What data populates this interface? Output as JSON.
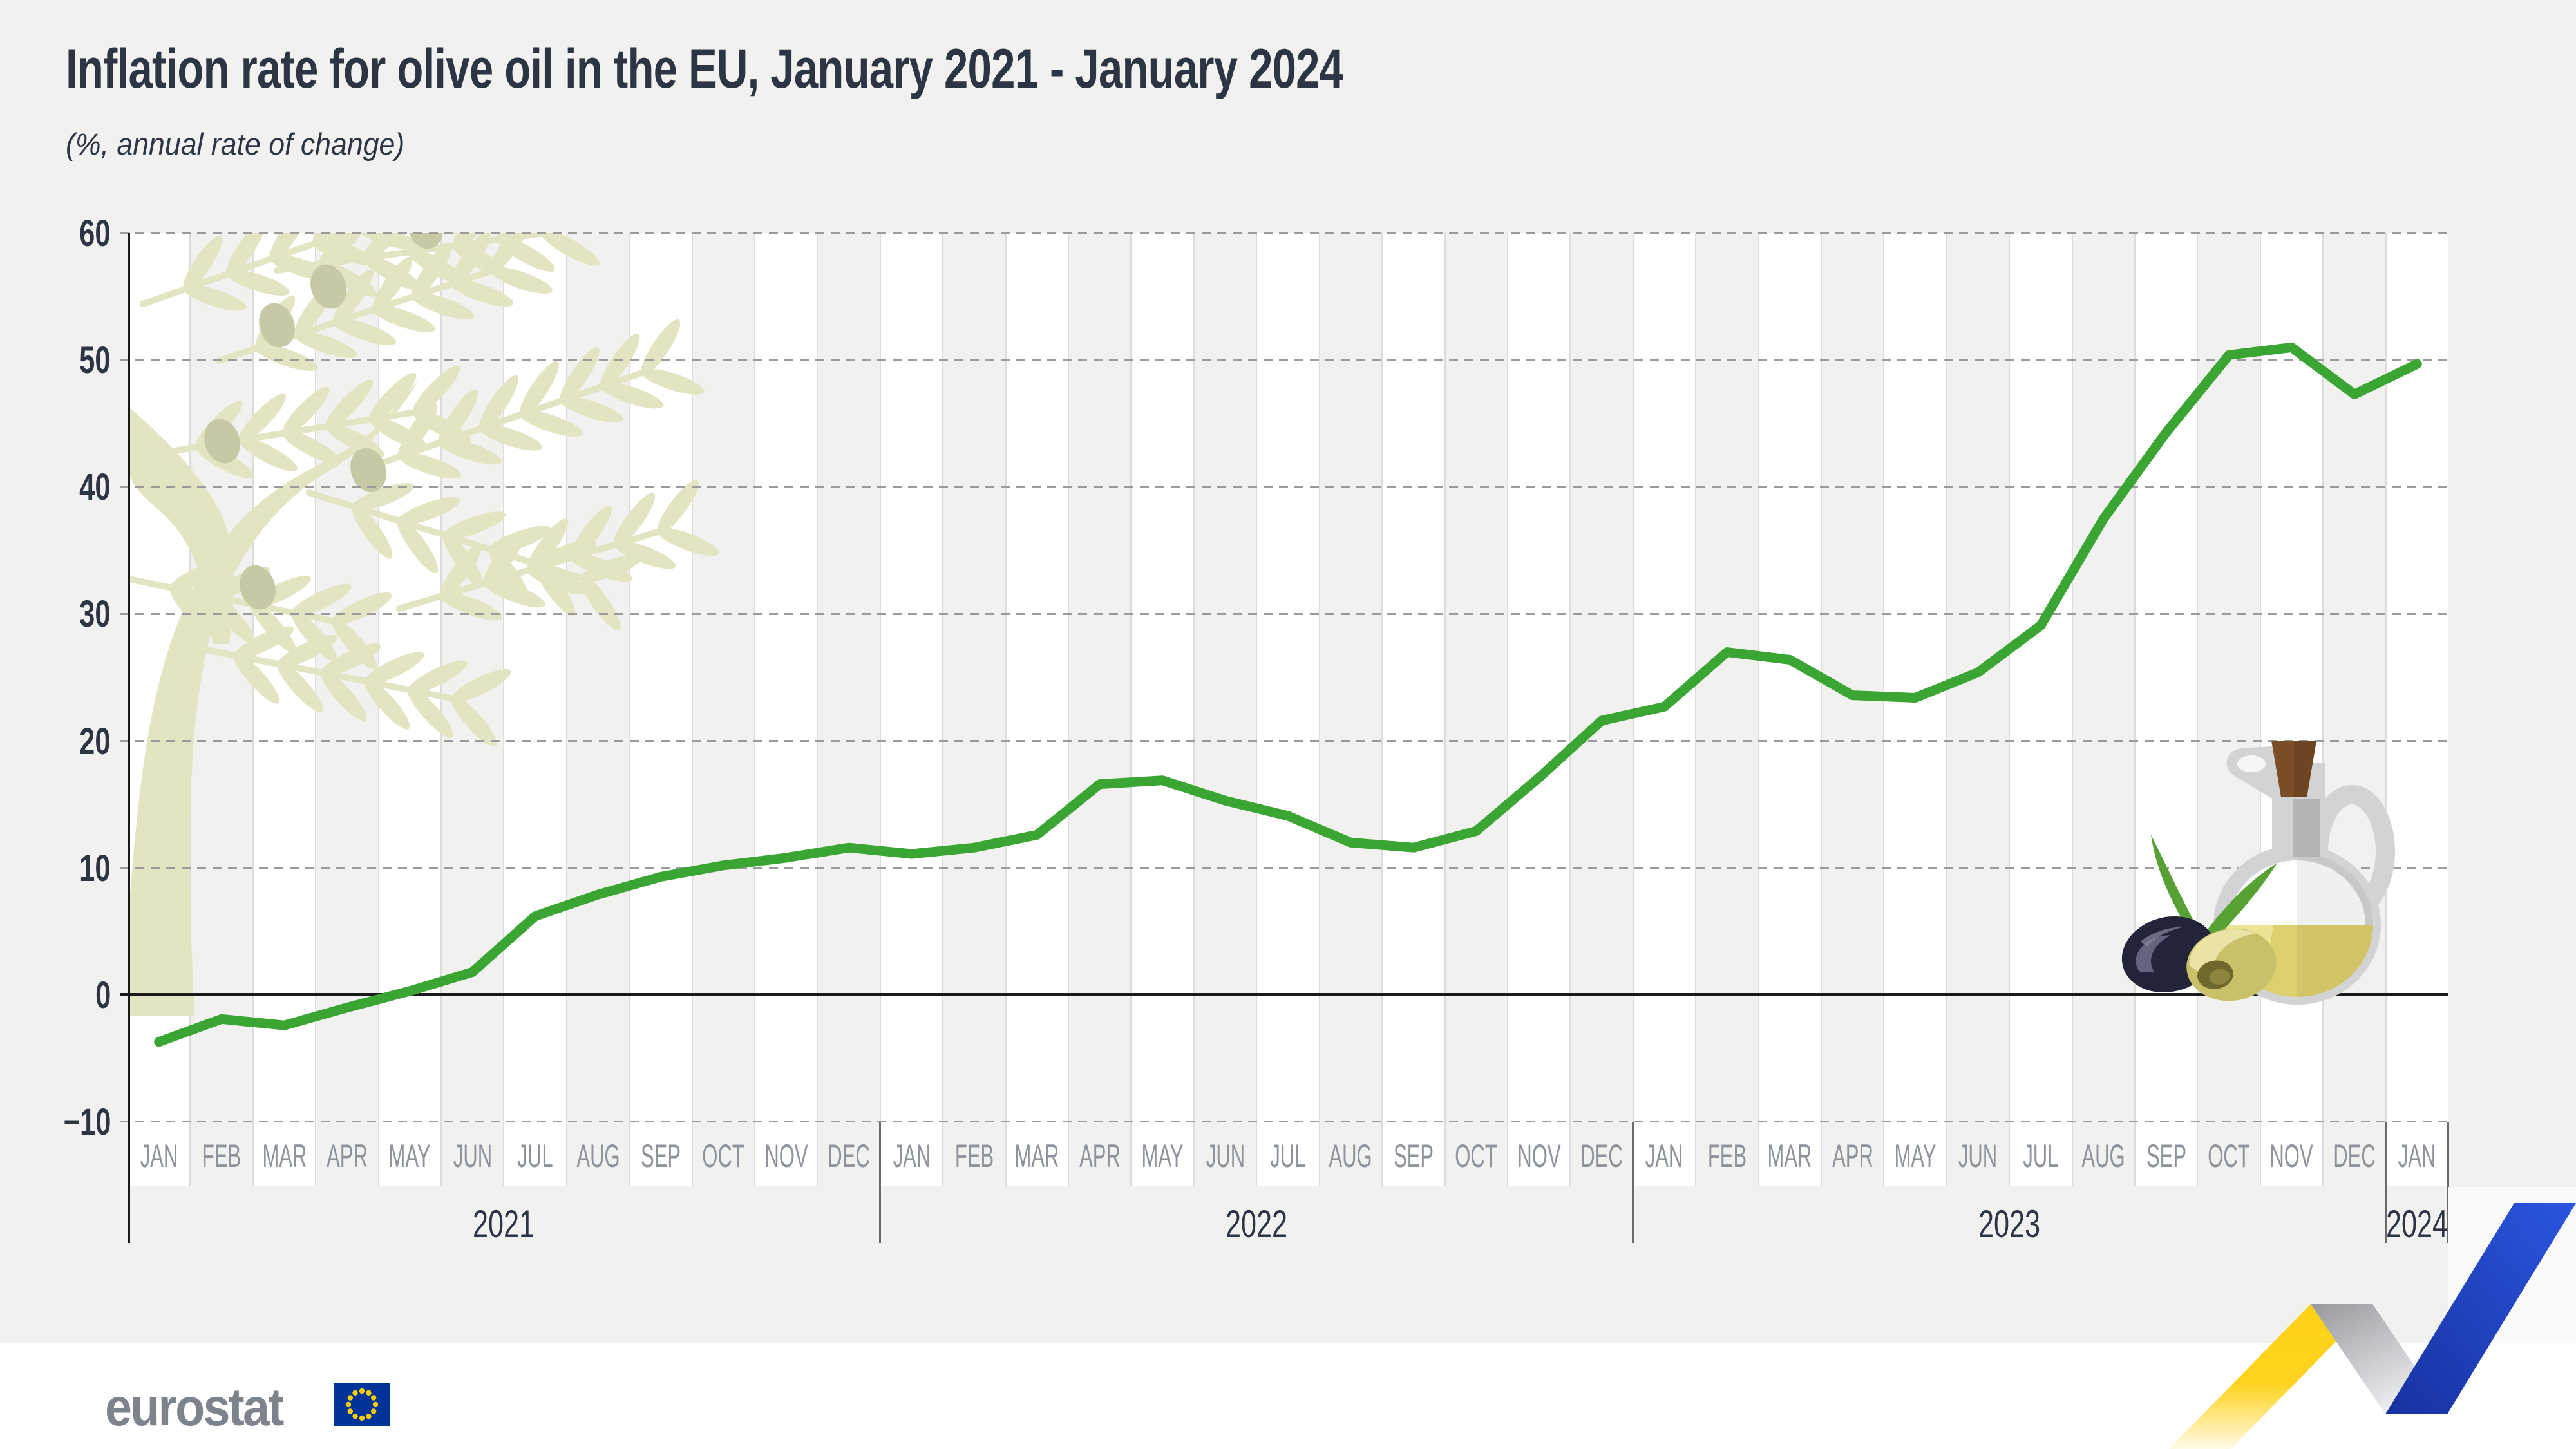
{
  "title": "Inflation rate for olive oil in the EU, January 2021 - January 2024",
  "subtitle": "(%, annual rate of change)",
  "chart_data": {
    "type": "line",
    "months": [
      "JAN",
      "FEB",
      "MAR",
      "APR",
      "MAY",
      "JUN",
      "JUL",
      "AUG",
      "SEP",
      "OCT",
      "NOV",
      "DEC",
      "JAN",
      "FEB",
      "MAR",
      "APR",
      "MAY",
      "JUN",
      "JUL",
      "AUG",
      "SEP",
      "OCT",
      "NOV",
      "DEC",
      "JAN",
      "FEB",
      "MAR",
      "APR",
      "MAY",
      "JUN",
      "JUL",
      "AUG",
      "SEP",
      "OCT",
      "NOV",
      "DEC",
      "JAN"
    ],
    "years": [
      {
        "label": "2021",
        "start_month": 0,
        "end_month": 11
      },
      {
        "label": "2022",
        "start_month": 12,
        "end_month": 23
      },
      {
        "label": "2023",
        "start_month": 24,
        "end_month": 35
      },
      {
        "label": "2024",
        "start_month": 36,
        "end_month": 36
      }
    ],
    "series": [
      {
        "name": "Olive oil annual inflation rate (%)",
        "color": "#3aa532",
        "values": [
          -3.7,
          -1.9,
          -2.4,
          -1.0,
          0.3,
          1.8,
          6.2,
          7.9,
          9.3,
          10.2,
          10.8,
          11.6,
          11.1,
          11.6,
          12.6,
          16.6,
          16.9,
          15.3,
          14.1,
          12.0,
          11.6,
          12.9,
          17.1,
          21.6,
          22.7,
          27.0,
          26.4,
          23.6,
          23.4,
          25.4,
          29.1,
          37.5,
          44.3,
          50.4,
          51.0,
          47.3,
          49.7
        ]
      }
    ],
    "ylim": [
      -10,
      60
    ],
    "yticks": [
      60,
      50,
      40,
      30,
      20,
      10,
      0,
      -10
    ],
    "grid": "horizontal-dashed, monthly-column-bands",
    "legend": "none"
  },
  "footer": {
    "logo_text": "eurostat"
  },
  "colors": {
    "page_bg": "#f1f1ef",
    "band_white": "#ffffff",
    "line_green": "#3aa532",
    "text_dark": "#2b3543",
    "month_label": "#8e939b",
    "logo_gray": "#7c838d",
    "eu_flag_blue": "#003399",
    "eu_flag_stars": "#ffcc00",
    "ribbon_yellow": "#ffd520",
    "ribbon_blue": "#2b55e0",
    "olive_tree": "#e3e4c1",
    "olive_fruit": "#c6c9a4"
  }
}
